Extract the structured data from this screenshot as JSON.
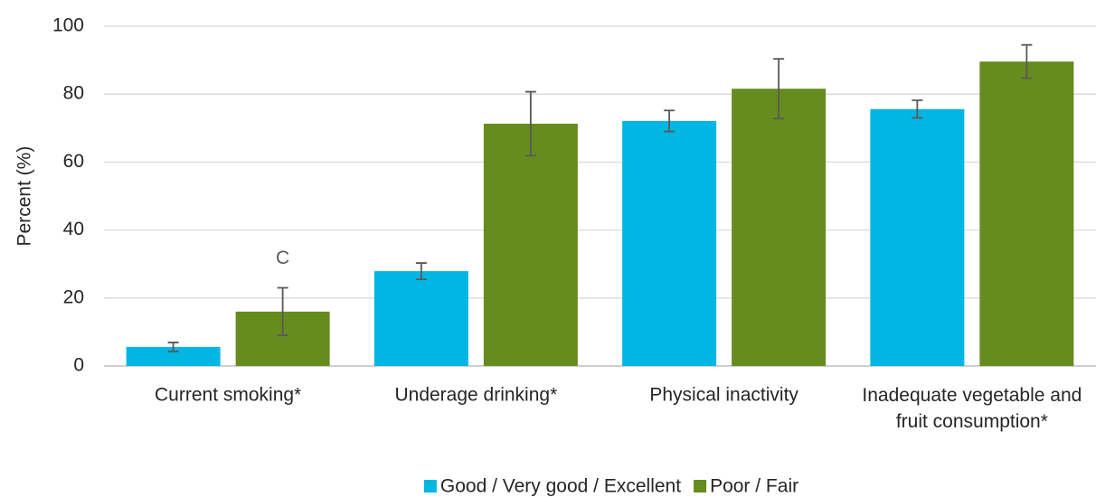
{
  "chart_data": {
    "type": "bar",
    "y_label": "Percent (%)",
    "categories": [
      "Current smoking*",
      "Underage drinking*",
      "Physical inactivity",
      "Inadequate vegetable and fruit consumption*"
    ],
    "series": [
      {
        "name": "Good / Very good / Excellent",
        "color": "#00b6e2",
        "values": [
          5.6,
          27.9,
          72.1,
          75.6
        ],
        "errors": [
          1.3,
          2.4,
          3.1,
          2.6
        ]
      },
      {
        "name": "Poor / Fair",
        "color": "#668c1f",
        "values": [
          16.0,
          71.3,
          81.6,
          89.6
        ],
        "errors": [
          7.0,
          9.4,
          8.8,
          4.9
        ]
      }
    ],
    "annotation": "C",
    "ylim": [
      0,
      100
    ],
    "yticks": [
      0,
      20,
      40,
      60,
      80,
      100
    ],
    "grid": true
  }
}
